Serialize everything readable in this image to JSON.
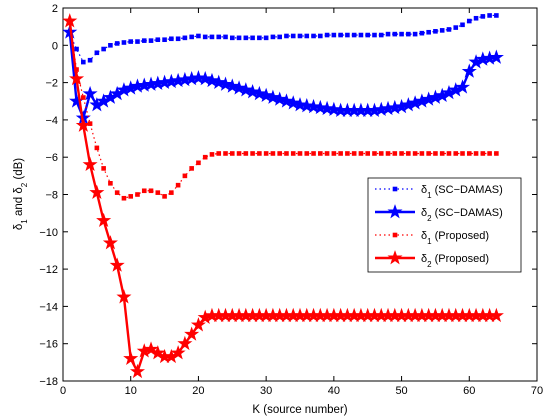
{
  "chart_data": {
    "type": "line",
    "title": "",
    "xlabel": "K (source number)",
    "ylabel_parts": [
      "δ",
      "1",
      " and δ",
      "2",
      " (dB)"
    ],
    "xlim": [
      0,
      70
    ],
    "ylim": [
      -18,
      2
    ],
    "xticks": [
      0,
      10,
      20,
      30,
      40,
      50,
      60,
      70
    ],
    "yticks": [
      -18,
      -16,
      -14,
      -12,
      -10,
      -8,
      -6,
      -4,
      -2,
      0,
      2
    ],
    "grid": false,
    "legend_position": "center-right",
    "x": [
      1,
      2,
      3,
      4,
      5,
      6,
      7,
      8,
      9,
      10,
      11,
      12,
      13,
      14,
      15,
      16,
      17,
      18,
      19,
      20,
      21,
      22,
      23,
      24,
      25,
      26,
      27,
      28,
      29,
      30,
      31,
      32,
      33,
      34,
      35,
      36,
      37,
      38,
      39,
      40,
      41,
      42,
      43,
      44,
      45,
      46,
      47,
      48,
      49,
      50,
      51,
      52,
      53,
      54,
      55,
      56,
      57,
      58,
      59,
      60,
      61,
      62,
      63,
      64
    ],
    "series": [
      {
        "name_main": "δ",
        "name_sub": "1",
        "name_rest": " (SC−DAMAS)",
        "color": "#0000ff",
        "line": "dotted",
        "marker": "square",
        "values": [
          0.6,
          -0.2,
          -0.9,
          -0.8,
          -0.4,
          -0.2,
          0.0,
          0.1,
          0.15,
          0.2,
          0.2,
          0.25,
          0.25,
          0.3,
          0.3,
          0.35,
          0.35,
          0.4,
          0.45,
          0.5,
          0.45,
          0.45,
          0.45,
          0.45,
          0.4,
          0.4,
          0.4,
          0.4,
          0.4,
          0.4,
          0.45,
          0.45,
          0.5,
          0.5,
          0.5,
          0.5,
          0.5,
          0.5,
          0.55,
          0.55,
          0.55,
          0.55,
          0.55,
          0.55,
          0.55,
          0.55,
          0.55,
          0.6,
          0.6,
          0.6,
          0.6,
          0.6,
          0.65,
          0.7,
          0.75,
          0.8,
          0.85,
          0.95,
          1.1,
          1.3,
          1.45,
          1.55,
          1.6,
          1.6
        ]
      },
      {
        "name_main": "δ",
        "name_sub": "2",
        "name_rest": " (SC−DAMAS)",
        "color": "#0000ff",
        "line": "solid",
        "marker": "star",
        "values": [
          0.7,
          -3.0,
          -3.9,
          -2.6,
          -3.2,
          -3.0,
          -2.8,
          -2.6,
          -2.4,
          -2.3,
          -2.2,
          -2.15,
          -2.1,
          -2.05,
          -2.0,
          -1.95,
          -1.9,
          -1.85,
          -1.8,
          -1.75,
          -1.8,
          -1.9,
          -2.0,
          -2.1,
          -2.2,
          -2.3,
          -2.4,
          -2.5,
          -2.6,
          -2.7,
          -2.8,
          -2.9,
          -3.0,
          -3.1,
          -3.2,
          -3.25,
          -3.3,
          -3.35,
          -3.4,
          -3.45,
          -3.5,
          -3.5,
          -3.5,
          -3.5,
          -3.5,
          -3.5,
          -3.45,
          -3.4,
          -3.35,
          -3.3,
          -3.2,
          -3.1,
          -3.0,
          -2.9,
          -2.8,
          -2.7,
          -2.55,
          -2.4,
          -2.25,
          -1.4,
          -0.9,
          -0.75,
          -0.7,
          -0.65
        ]
      },
      {
        "name_main": "δ",
        "name_sub": "1",
        "name_rest": " (Proposed)",
        "color": "#ff0000",
        "line": "dotted",
        "marker": "square",
        "values": [
          1.2,
          -1.3,
          -2.8,
          -4.2,
          -5.5,
          -6.6,
          -7.4,
          -7.9,
          -8.2,
          -8.1,
          -8.0,
          -7.8,
          -7.8,
          -7.9,
          -8.1,
          -7.9,
          -7.5,
          -7.0,
          -6.6,
          -6.3,
          -6.0,
          -5.85,
          -5.8,
          -5.8,
          -5.8,
          -5.8,
          -5.8,
          -5.8,
          -5.8,
          -5.8,
          -5.8,
          -5.8,
          -5.8,
          -5.8,
          -5.8,
          -5.8,
          -5.8,
          -5.8,
          -5.8,
          -5.8,
          -5.8,
          -5.8,
          -5.8,
          -5.8,
          -5.8,
          -5.8,
          -5.8,
          -5.8,
          -5.8,
          -5.8,
          -5.8,
          -5.8,
          -5.8,
          -5.8,
          -5.8,
          -5.8,
          -5.8,
          -5.8,
          -5.8,
          -5.8,
          -5.8,
          -5.8,
          -5.8,
          -5.8
        ]
      },
      {
        "name_main": "δ",
        "name_sub": "2",
        "name_rest": " (Proposed)",
        "color": "#ff0000",
        "line": "solid",
        "marker": "star",
        "values": [
          1.3,
          -1.8,
          -4.3,
          -6.4,
          -7.9,
          -9.4,
          -10.6,
          -11.8,
          -13.5,
          -16.8,
          -17.5,
          -16.4,
          -16.3,
          -16.5,
          -16.7,
          -16.7,
          -16.5,
          -16.0,
          -15.5,
          -15.0,
          -14.6,
          -14.5,
          -14.5,
          -14.5,
          -14.5,
          -14.5,
          -14.5,
          -14.5,
          -14.5,
          -14.5,
          -14.5,
          -14.5,
          -14.5,
          -14.5,
          -14.5,
          -14.5,
          -14.5,
          -14.5,
          -14.5,
          -14.5,
          -14.5,
          -14.5,
          -14.5,
          -14.5,
          -14.5,
          -14.5,
          -14.5,
          -14.5,
          -14.5,
          -14.5,
          -14.5,
          -14.5,
          -14.5,
          -14.5,
          -14.5,
          -14.5,
          -14.5,
          -14.5,
          -14.5,
          -14.5,
          -14.5,
          -14.5,
          -14.5,
          -14.5
        ]
      }
    ]
  }
}
